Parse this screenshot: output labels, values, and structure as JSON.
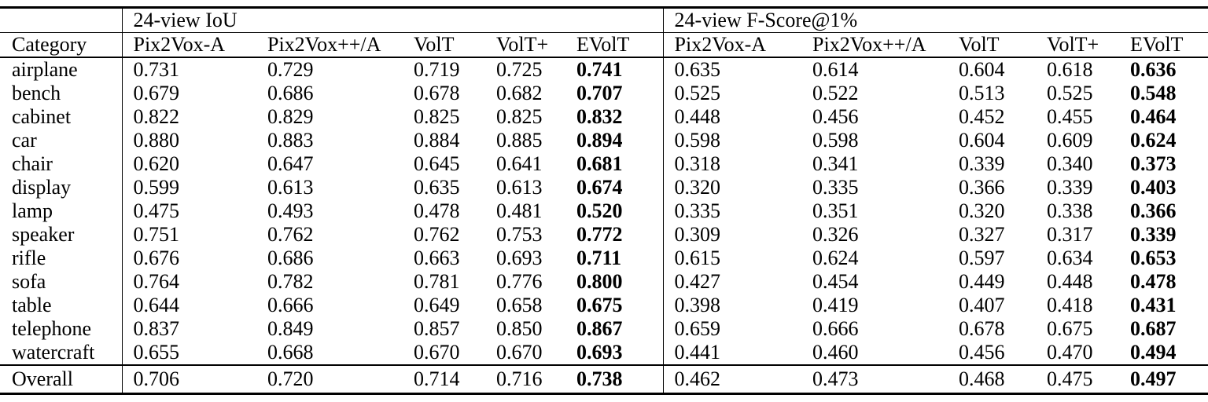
{
  "table": {
    "group_headers": [
      "24-view IoU",
      "24-view F-Score@1%"
    ],
    "category_header": "Category",
    "method_columns": [
      "Pix2Vox-A",
      "Pix2Vox++/A",
      "VolT",
      "VolT+",
      "EVolT"
    ],
    "rows": [
      {
        "category": "airplane",
        "iou": [
          "0.731",
          "0.729",
          "0.719",
          "0.725",
          "0.741"
        ],
        "fscore": [
          "0.635",
          "0.614",
          "0.604",
          "0.618",
          "0.636"
        ]
      },
      {
        "category": "bench",
        "iou": [
          "0.679",
          "0.686",
          "0.678",
          "0.682",
          "0.707"
        ],
        "fscore": [
          "0.525",
          "0.522",
          "0.513",
          "0.525",
          "0.548"
        ]
      },
      {
        "category": "cabinet",
        "iou": [
          "0.822",
          "0.829",
          "0.825",
          "0.825",
          "0.832"
        ],
        "fscore": [
          "0.448",
          "0.456",
          "0.452",
          "0.455",
          "0.464"
        ]
      },
      {
        "category": "car",
        "iou": [
          "0.880",
          "0.883",
          "0.884",
          "0.885",
          "0.894"
        ],
        "fscore": [
          "0.598",
          "0.598",
          "0.604",
          "0.609",
          "0.624"
        ]
      },
      {
        "category": "chair",
        "iou": [
          "0.620",
          "0.647",
          "0.645",
          "0.641",
          "0.681"
        ],
        "fscore": [
          "0.318",
          "0.341",
          "0.339",
          "0.340",
          "0.373"
        ]
      },
      {
        "category": "display",
        "iou": [
          "0.599",
          "0.613",
          "0.635",
          "0.613",
          "0.674"
        ],
        "fscore": [
          "0.320",
          "0.335",
          "0.366",
          "0.339",
          "0.403"
        ]
      },
      {
        "category": "lamp",
        "iou": [
          "0.475",
          "0.493",
          "0.478",
          "0.481",
          "0.520"
        ],
        "fscore": [
          "0.335",
          "0.351",
          "0.320",
          "0.338",
          "0.366"
        ]
      },
      {
        "category": "speaker",
        "iou": [
          "0.751",
          "0.762",
          "0.762",
          "0.753",
          "0.772"
        ],
        "fscore": [
          "0.309",
          "0.326",
          "0.327",
          "0.317",
          "0.339"
        ]
      },
      {
        "category": "rifle",
        "iou": [
          "0.676",
          "0.686",
          "0.663",
          "0.693",
          "0.711"
        ],
        "fscore": [
          "0.615",
          "0.624",
          "0.597",
          "0.634",
          "0.653"
        ]
      },
      {
        "category": "sofa",
        "iou": [
          "0.764",
          "0.782",
          "0.781",
          "0.776",
          "0.800"
        ],
        "fscore": [
          "0.427",
          "0.454",
          "0.449",
          "0.448",
          "0.478"
        ]
      },
      {
        "category": "table",
        "iou": [
          "0.644",
          "0.666",
          "0.649",
          "0.658",
          "0.675"
        ],
        "fscore": [
          "0.398",
          "0.419",
          "0.407",
          "0.418",
          "0.431"
        ]
      },
      {
        "category": "telephone",
        "iou": [
          "0.837",
          "0.849",
          "0.857",
          "0.850",
          "0.867"
        ],
        "fscore": [
          "0.659",
          "0.666",
          "0.678",
          "0.675",
          "0.687"
        ]
      },
      {
        "category": "watercraft",
        "iou": [
          "0.655",
          "0.668",
          "0.670",
          "0.670",
          "0.693"
        ],
        "fscore": [
          "0.441",
          "0.460",
          "0.456",
          "0.470",
          "0.494"
        ]
      }
    ],
    "overall": {
      "category": "Overall",
      "iou": [
        "0.706",
        "0.720",
        "0.714",
        "0.716",
        "0.738"
      ],
      "fscore": [
        "0.462",
        "0.473",
        "0.468",
        "0.475",
        "0.497"
      ]
    }
  }
}
